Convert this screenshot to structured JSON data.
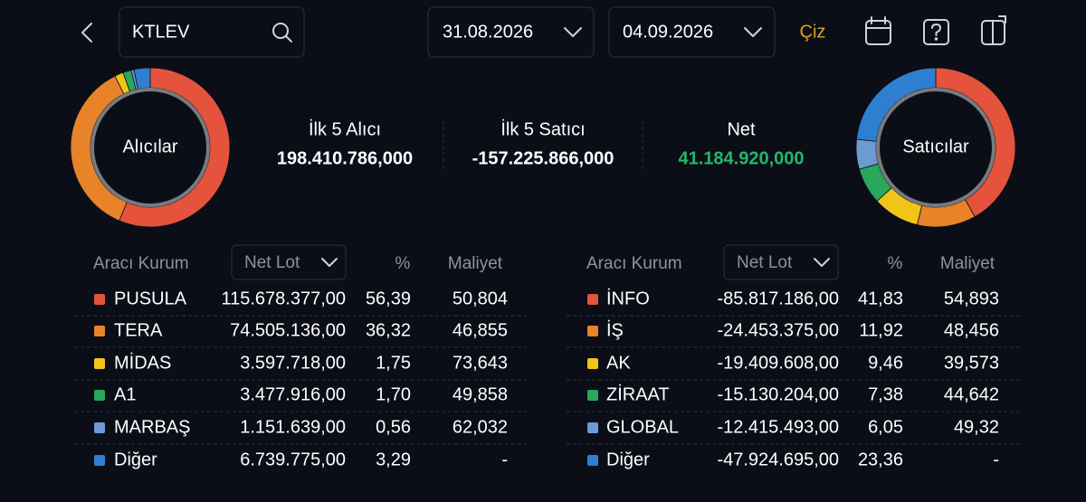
{
  "search": {
    "query": "KTLEV"
  },
  "date_range": {
    "start": "31.08.2026",
    "end": "04.09.2026"
  },
  "draw_button": "Çiz",
  "summary": [
    {
      "label": "İlk 5 Alıcı",
      "value": "198.410.786,000"
    },
    {
      "label": "İlk 5 Satıcı",
      "value": "-157.225.866,000"
    },
    {
      "label": "Net",
      "value": "41.184.920,000"
    }
  ],
  "panels": [
    {
      "title": "Alıcılar",
      "headers": [
        "Aracı Kurum",
        "Net Lot",
        "%",
        "Maliyet"
      ],
      "rows": [
        {
          "name": "PUSULA",
          "color": "#e5533d",
          "net_lot": "115.678.377,00",
          "percent": "56,39",
          "cost": "50,804"
        },
        {
          "name": "TERA",
          "color": "#e8832a",
          "net_lot": "74.505.136,00",
          "percent": "36,32",
          "cost": "46,855"
        },
        {
          "name": "MİDAS",
          "color": "#f2c418",
          "net_lot": "3.597.718,00",
          "percent": "1,75",
          "cost": "73,643"
        },
        {
          "name": "A1",
          "color": "#27a85a",
          "net_lot": "3.477.916,00",
          "percent": "1,70",
          "cost": "49,858"
        },
        {
          "name": "MARBAŞ",
          "color": "#6b9bd1",
          "net_lot": "1.151.639,00",
          "percent": "0,56",
          "cost": "62,032"
        },
        {
          "name": "Diğer",
          "color": "#2f7fd0",
          "net_lot": "6.739.775,00",
          "percent": "3,29",
          "cost": "-"
        }
      ]
    },
    {
      "title": "Satıcılar",
      "headers": [
        "Aracı Kurum",
        "Net Lot",
        "%",
        "Maliyet"
      ],
      "rows": [
        {
          "name": "İNFO",
          "color": "#e5533d",
          "net_lot": "-85.817.186,00",
          "percent": "41,83",
          "cost": "54,893"
        },
        {
          "name": "İŞ",
          "color": "#e8832a",
          "net_lot": "-24.453.375,00",
          "percent": "11,92",
          "cost": "48,456"
        },
        {
          "name": "AK",
          "color": "#f2c418",
          "net_lot": "-19.409.608,00",
          "percent": "9,46",
          "cost": "39,573"
        },
        {
          "name": "ZİRAAT",
          "color": "#27a85a",
          "net_lot": "-15.130.204,00",
          "percent": "7,38",
          "cost": "44,642"
        },
        {
          "name": "GLOBAL",
          "color": "#6b9bd1",
          "net_lot": "-12.415.493,00",
          "percent": "6,05",
          "cost": "49,32"
        },
        {
          "name": "Diğer",
          "color": "#2f7fd0",
          "net_lot": "-47.924.695,00",
          "percent": "23,36",
          "cost": "-"
        }
      ]
    }
  ]
}
